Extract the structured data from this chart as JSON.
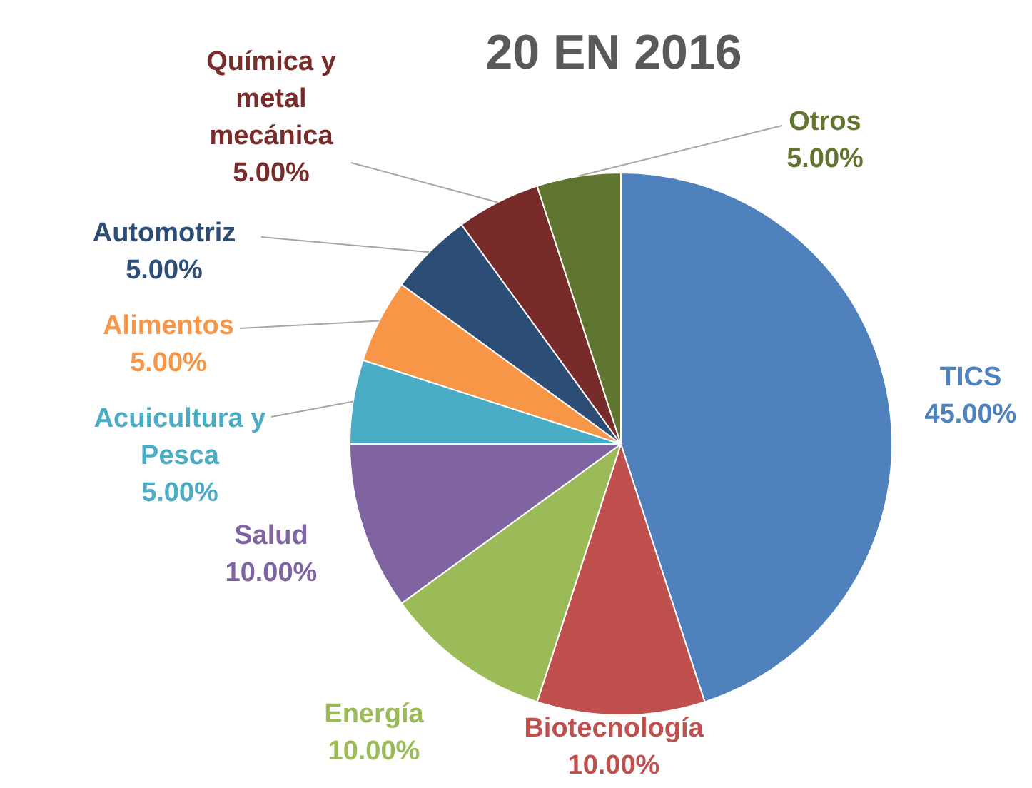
{
  "chart_data": {
    "type": "pie",
    "title": "20 EN 2016",
    "categories": [
      "TICS",
      "Biotecnología",
      "Energía",
      "Salud",
      "Acuicultura y Pesca",
      "Alimentos",
      "Automotriz",
      "Química y metal mecánica",
      "Otros"
    ],
    "values": [
      45,
      10,
      10,
      10,
      5,
      5,
      5,
      5,
      5
    ],
    "value_labels": [
      "45.00%",
      "10.00%",
      "10.00%",
      "10.00%",
      "5.00%",
      "5.00%",
      "5.00%",
      "5.00%",
      "5.00%"
    ],
    "colors": [
      "#4f81bd",
      "#c0504d",
      "#9bbb59",
      "#8064a2",
      "#4bacc6",
      "#f79646",
      "#2c4d75",
      "#772c2a",
      "#5f7530"
    ]
  }
}
